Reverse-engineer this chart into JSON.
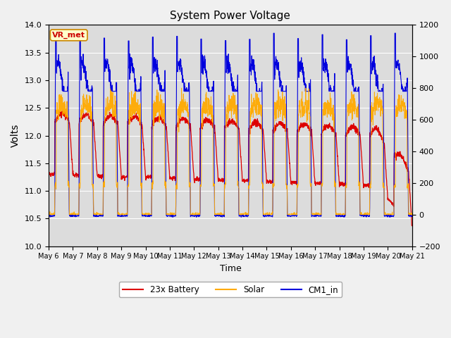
{
  "title": "System Power Voltage",
  "xlabel": "Time",
  "ylabel": "Volts",
  "ylim_left": [
    10.0,
    14.0
  ],
  "ylim_right": [
    -200,
    1200
  ],
  "yticks_left": [
    10.0,
    10.5,
    11.0,
    11.5,
    12.0,
    12.5,
    13.0,
    13.5,
    14.0
  ],
  "yticks_right": [
    -200,
    0,
    200,
    400,
    600,
    800,
    1000,
    1200
  ],
  "xtick_labels": [
    "May 6",
    "May 7",
    "May 8",
    "May 9",
    "May 10",
    "May 11",
    "May 12",
    "May 13",
    "May 14",
    "May 15",
    "May 16",
    "May 17",
    "May 18",
    "May 19",
    "May 20",
    "May 21"
  ],
  "color_battery": "#dd0000",
  "color_solar": "#ffaa00",
  "color_cm1": "#0000dd",
  "plot_bg": "#dcdcdc",
  "fig_bg": "#f0f0f0",
  "grid_color": "#ffffff",
  "annotation_text": "VR_met",
  "annotation_bg": "#ffffcc",
  "annotation_border": "#cc8800",
  "legend_labels": [
    "23x Battery",
    "Solar",
    "CM1_in"
  ],
  "n_days": 15,
  "n_pts": 2000
}
